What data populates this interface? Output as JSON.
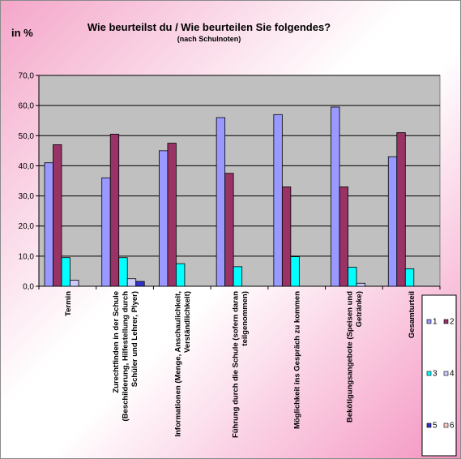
{
  "chart_data": {
    "type": "bar",
    "title": "Wie beurteilst  du / Wie beurteilen  Sie folgendes?",
    "subtitle": "(nach Schulnoten)",
    "ylabel": "in %",
    "ylim": [
      0,
      70
    ],
    "yticks": [
      "0,0",
      "10,0",
      "20,0",
      "30,0",
      "40,0",
      "50,0",
      "60,0",
      "70,0"
    ],
    "grid": true,
    "legend_position": "bottom-right",
    "categories": [
      [
        "Termin"
      ],
      [
        "Zurechtfinden in der Schule",
        "(Beschilderung, Hilfestellung durch",
        "Schüler und Lehrer, Plyer)"
      ],
      [
        "Informationen (Menge, Anschaulichkeit,",
        "Verständlichkeit)"
      ],
      [
        "Führung durch die Schule (sofern daran",
        "teilgenommen)"
      ],
      [
        "Möglichkeit ins Gespräch zu kommen"
      ],
      [
        "Bekötigungsangebote (Speisen und",
        "Getränke)"
      ],
      [
        "Gesamturteil"
      ]
    ],
    "series": [
      {
        "name": "1",
        "color": "#9999ff",
        "values": [
          41.0,
          36.0,
          45.0,
          56.0,
          57.0,
          59.5,
          43.0
        ]
      },
      {
        "name": "2",
        "color": "#993366",
        "values": [
          47.0,
          50.5,
          47.5,
          37.5,
          33.0,
          33.0,
          51.0
        ]
      },
      {
        "name": "3",
        "color": "#00ffff",
        "values": [
          9.5,
          9.5,
          7.5,
          6.5,
          9.8,
          6.3,
          5.8
        ]
      },
      {
        "name": "4",
        "color": "#ccccff",
        "values": [
          2.0,
          2.5,
          0,
          0,
          0,
          1.0,
          0
        ]
      },
      {
        "name": "5",
        "color": "#3333cc",
        "values": [
          0,
          1.6,
          0,
          0,
          0,
          0,
          0
        ]
      },
      {
        "name": "6",
        "color": "#ffcccc",
        "values": [
          0,
          0,
          0,
          0,
          0,
          0,
          0
        ]
      }
    ]
  }
}
